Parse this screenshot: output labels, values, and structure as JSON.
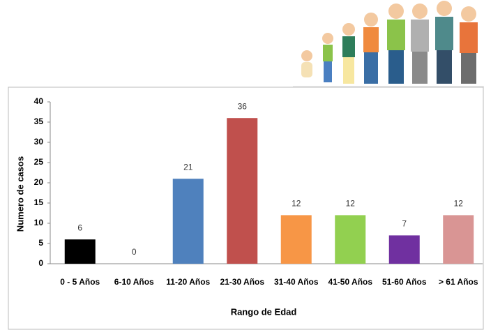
{
  "chart_data": {
    "type": "bar",
    "x_label": "Rango de Edad",
    "y_label": "Numero de casos",
    "categories": [
      "0 - 5 Años",
      "6-10 Años",
      "11-20 Años",
      "21-30 Años",
      "31-40 Años",
      "41-50 Años",
      "51-60 Años",
      "> 61 Años"
    ],
    "values": [
      6,
      0,
      21,
      36,
      12,
      12,
      7,
      12
    ],
    "colors": [
      "#000000",
      "#7f7f7f",
      "#4f81bd",
      "#c0504d",
      "#f79646",
      "#92d050",
      "#7030a0",
      "#d99594"
    ],
    "ylim": [
      0,
      40
    ],
    "yticks": [
      0,
      5,
      10,
      15,
      20,
      25,
      30,
      35,
      40
    ],
    "grid": false
  }
}
